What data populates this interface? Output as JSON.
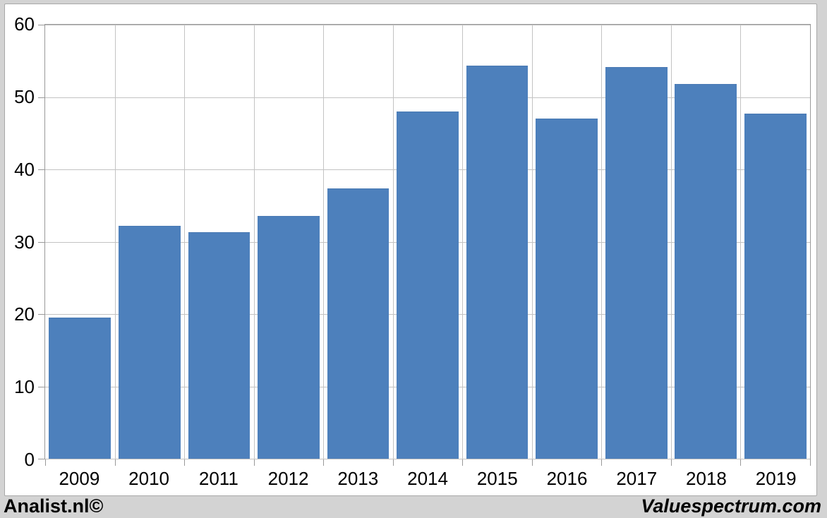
{
  "chart_data": {
    "type": "bar",
    "title": "",
    "xlabel": "",
    "ylabel": "",
    "categories": [
      "2009",
      "2010",
      "2011",
      "2012",
      "2013",
      "2014",
      "2015",
      "2016",
      "2017",
      "2018",
      "2019"
    ],
    "values": [
      19.5,
      32.2,
      31.3,
      33.6,
      37.4,
      48.0,
      54.3,
      47.0,
      54.1,
      51.8,
      47.7
    ],
    "ylim": [
      0,
      60
    ],
    "yticks": [
      0,
      10,
      20,
      30,
      40,
      50,
      60
    ],
    "grid": true,
    "legend_position": "none"
  },
  "colors": {
    "page_background": "#d3d3d3",
    "panel_background": "#ffffff",
    "panel_border": "#a8a8a8",
    "plot_border": "#999999",
    "gridline": "#c3c3c3",
    "tick": "#999999",
    "bar_fill": "#4d80bc",
    "bar_edge": "#4a7ab3",
    "text": "#000000"
  },
  "footer": {
    "left": "Analist.nl©",
    "right": "Valuespectrum.com"
  }
}
